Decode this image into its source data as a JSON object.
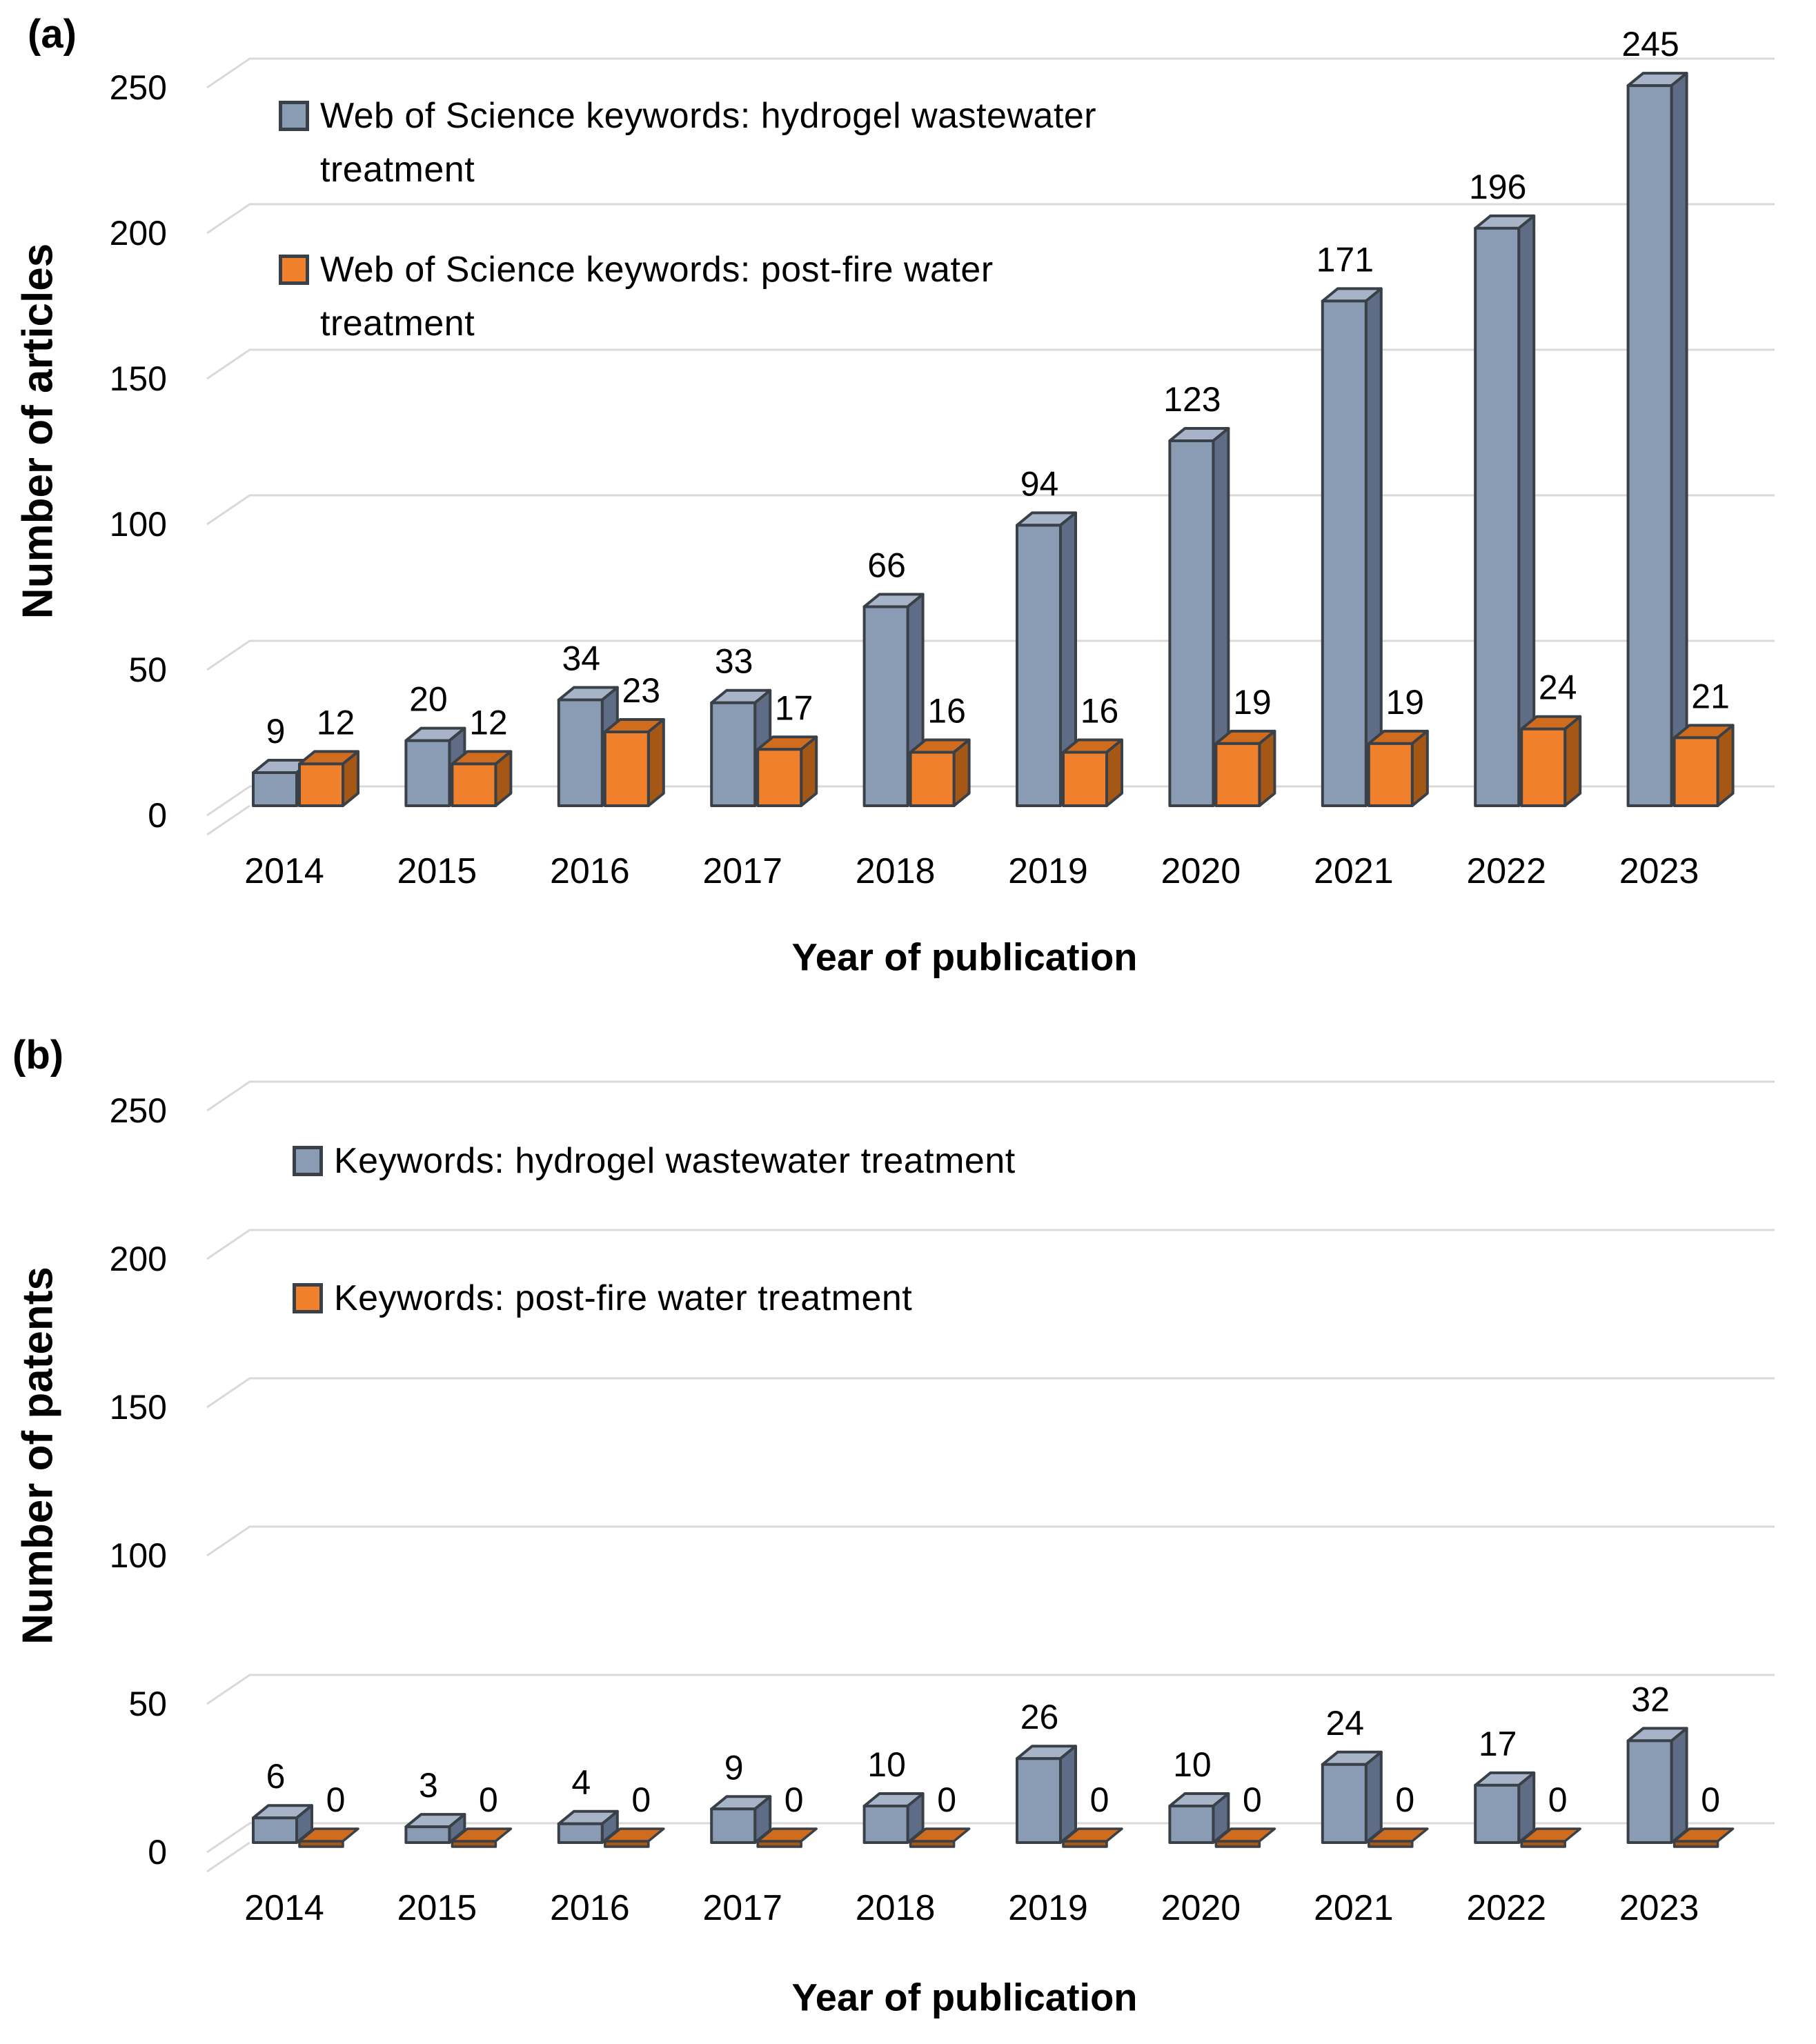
{
  "figure": {
    "description": "Two-panel 3D clustered column chart comparing publication and patent counts by year"
  },
  "colors": {
    "background": "#ffffff",
    "gridline": "#d9d9d9",
    "outline": "#3a4048",
    "text": "#000000",
    "accent_blue": "#8a9bb4",
    "accent_orange": "#f0802b"
  },
  "chart_data": [
    {
      "type": "bar",
      "style": "3d-clustered-column",
      "panel_label": "(a)",
      "categories": [
        "2014",
        "2015",
        "2016",
        "2017",
        "2018",
        "2019",
        "2020",
        "2021",
        "2022",
        "2023"
      ],
      "series": [
        {
          "name": "Web of Science keywords: hydrogel wastewater treatment",
          "values": [
            9,
            20,
            34,
            33,
            66,
            94,
            123,
            171,
            196,
            245
          ],
          "colors": {
            "front": "#8a9bb4",
            "top": "#a7b4c8",
            "side": "#5e6d85"
          }
        },
        {
          "name": "Web of Science keywords: post-fire water treatment",
          "values": [
            12,
            12,
            23,
            17,
            16,
            16,
            19,
            19,
            24,
            21
          ],
          "colors": {
            "front": "#f0802b",
            "top": "#d06c1e",
            "side": "#a55716"
          }
        }
      ],
      "legend_display_lines": [
        [
          "Web of Science keywords: hydrogel wastewater",
          "treatment"
        ],
        [
          "Web of Science keywords: post-fire water",
          "treatment"
        ]
      ],
      "xlabel": "Year of publication",
      "ylabel": "Number of articles",
      "ylim": [
        0,
        250
      ],
      "yticks": [
        0,
        50,
        100,
        150,
        200,
        250
      ],
      "grid": true,
      "data_labels": true,
      "legend_position": "inside-top-left"
    },
    {
      "type": "bar",
      "style": "3d-clustered-column",
      "panel_label": "(b)",
      "categories": [
        "2014",
        "2015",
        "2016",
        "2017",
        "2018",
        "2019",
        "2020",
        "2021",
        "2022",
        "2023"
      ],
      "series": [
        {
          "name": "Keywords: hydrogel wastewater treatment",
          "values": [
            6,
            3,
            4,
            9,
            10,
            26,
            10,
            24,
            17,
            32
          ],
          "colors": {
            "front": "#8a9bb4",
            "top": "#a7b4c8",
            "side": "#5e6d85"
          }
        },
        {
          "name": "Keywords: post-fire water treatment",
          "values": [
            0,
            0,
            0,
            0,
            0,
            0,
            0,
            0,
            0,
            0
          ],
          "colors": {
            "front": "#f0802b",
            "top": "#d06c1e",
            "side": "#a55716"
          }
        }
      ],
      "legend_display_lines": [
        [
          "Keywords: hydrogel wastewater treatment"
        ],
        [
          "Keywords: post-fire water treatment"
        ]
      ],
      "xlabel": "Year of publication",
      "ylabel": "Number of patents",
      "ylim": [
        0,
        250
      ],
      "yticks": [
        0,
        50,
        100,
        150,
        200,
        250
      ],
      "grid": true,
      "data_labels": true,
      "legend_position": "inside-top-left"
    }
  ]
}
